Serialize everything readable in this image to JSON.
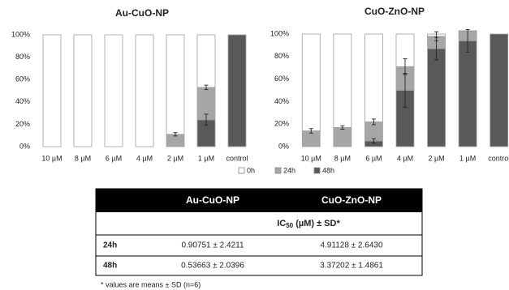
{
  "chart_data": [
    {
      "type": "bar",
      "stacked": true,
      "title": "Au-CuO-NP",
      "categories": [
        "10 µM",
        "8 µM",
        "6 µM",
        "4 µM",
        "2 µM",
        "1 µM",
        "control"
      ],
      "series": [
        {
          "name": "0h",
          "color": "#ffffff",
          "values": [
            100,
            100,
            100,
            100,
            89,
            47,
            0
          ],
          "errors": [
            null,
            null,
            null,
            null,
            null,
            null,
            null
          ]
        },
        {
          "name": "24h",
          "color": "#a6a6a6",
          "values": [
            0,
            0,
            0,
            0,
            11,
            29,
            0
          ],
          "errors": [
            null,
            null,
            null,
            null,
            1.5,
            2,
            null
          ]
        },
        {
          "name": "48h",
          "color": "#595959",
          "values": [
            0,
            0,
            0,
            0,
            0,
            24,
            100
          ],
          "errors": [
            null,
            null,
            null,
            null,
            null,
            5,
            null
          ]
        }
      ],
      "ylim": [
        0,
        100
      ],
      "yticks": [
        {
          "value": 0,
          "label": "0%"
        },
        {
          "value": 20,
          "label": "20%"
        },
        {
          "value": 40,
          "label": "40%"
        },
        {
          "value": 60,
          "label": "60%"
        },
        {
          "value": 80,
          "label": "80%"
        },
        {
          "value": 100,
          "label": "100%"
        }
      ],
      "grid": false
    },
    {
      "type": "bar",
      "stacked": true,
      "title": "CuO-ZnO-NP",
      "categories": [
        "10 µM",
        "8 µM",
        "6 µM",
        "4 µM",
        "2 µM",
        "1 µM",
        "control"
      ],
      "series": [
        {
          "name": "0h",
          "color": "#ffffff",
          "values": [
            86,
            83,
            78,
            29,
            2,
            0,
            0
          ],
          "errors": [
            null,
            null,
            null,
            null,
            null,
            null,
            null
          ]
        },
        {
          "name": "24h",
          "color": "#a6a6a6",
          "values": [
            14,
            17,
            17,
            21,
            11,
            9,
            0
          ],
          "errors": [
            2,
            1.5,
            2.5,
            7,
            4,
            null,
            null
          ]
        },
        {
          "name": "48h",
          "color": "#595959",
          "values": [
            0,
            0,
            5,
            50,
            87,
            94,
            100
          ],
          "errors": [
            null,
            null,
            2,
            15,
            10,
            10,
            null
          ]
        }
      ],
      "ylim": [
        0,
        100
      ],
      "yticks": [
        {
          "value": 0,
          "label": "0%"
        },
        {
          "value": 20,
          "label": "20%"
        },
        {
          "value": 40,
          "label": "40%"
        },
        {
          "value": 60,
          "label": "60%"
        },
        {
          "value": 80,
          "label": "80%"
        },
        {
          "value": 100,
          "label": "100%"
        }
      ],
      "grid": false
    }
  ],
  "table": {
    "columns": [
      "Au-CuO-NP",
      "CuO-ZnO-NP"
    ],
    "subheader": {
      "main": "IC",
      "subscript": "50",
      "rest": " (µM) ± SD*"
    },
    "rows": [
      {
        "label": "24h",
        "values": [
          "0.90751 ± 2.4211",
          "4.91128 ± 2.6430"
        ]
      },
      {
        "label": "48h",
        "values": [
          "0.53663 ± 2.0396",
          "3.37202 ± 1.4861"
        ]
      }
    ]
  },
  "footnote": "* values are means ± SD (n=6)"
}
